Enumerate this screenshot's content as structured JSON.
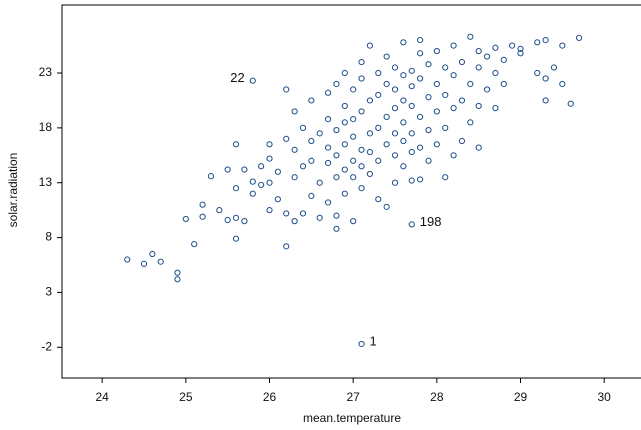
{
  "chart_data": {
    "type": "scatter",
    "x_label": "mean.temperature",
    "y_label": "solar.radiation",
    "xlim": [
      23.52,
      30.44
    ],
    "ylim": [
      -4.8,
      29.2
    ],
    "xticks": [
      24,
      25,
      26,
      27,
      28,
      29,
      30
    ],
    "yticks": [
      -2,
      3,
      8,
      13,
      18,
      23
    ],
    "color": "#1f4e8c",
    "x": [
      24.3,
      24.5,
      24.6,
      24.7,
      24.9,
      24.9,
      25.0,
      25.1,
      25.2,
      25.2,
      25.3,
      25.4,
      25.5,
      25.5,
      25.6,
      25.6,
      25.6,
      25.6,
      25.7,
      25.7,
      25.8,
      25.8,
      25.8,
      25.9,
      25.9,
      26.0,
      26.0,
      26.0,
      26.0,
      26.1,
      26.1,
      26.2,
      26.2,
      26.2,
      26.2,
      26.3,
      26.3,
      26.3,
      26.3,
      26.4,
      26.4,
      26.4,
      26.5,
      26.5,
      26.5,
      26.5,
      26.6,
      26.6,
      26.6,
      26.7,
      26.7,
      26.7,
      26.7,
      26.7,
      26.8,
      26.8,
      26.8,
      26.8,
      26.8,
      26.8,
      26.9,
      26.9,
      26.9,
      26.9,
      26.9,
      26.9,
      27.0,
      27.0,
      27.0,
      27.0,
      27.0,
      27.0,
      27.1,
      27.1,
      27.1,
      27.1,
      27.1,
      27.1,
      27.1,
      27.2,
      27.2,
      27.2,
      27.2,
      27.2,
      27.3,
      27.3,
      27.3,
      27.3,
      27.3,
      27.4,
      27.4,
      27.4,
      27.4,
      27.4,
      27.5,
      27.5,
      27.5,
      27.5,
      27.5,
      27.5,
      27.6,
      27.6,
      27.6,
      27.6,
      27.6,
      27.6,
      27.7,
      27.7,
      27.7,
      27.7,
      27.7,
      27.7,
      27.7,
      27.8,
      27.8,
      27.8,
      27.8,
      27.8,
      27.8,
      27.9,
      27.9,
      27.9,
      27.9,
      28.0,
      28.0,
      28.0,
      28.0,
      28.1,
      28.1,
      28.1,
      28.1,
      28.2,
      28.2,
      28.2,
      28.2,
      28.3,
      28.3,
      28.3,
      28.4,
      28.4,
      28.4,
      28.5,
      28.5,
      28.5,
      28.5,
      28.6,
      28.6,
      28.7,
      28.7,
      28.7,
      28.8,
      28.8,
      28.9,
      29.0,
      29.0,
      29.2,
      29.2,
      29.3,
      29.3,
      29.3,
      29.4,
      29.5,
      29.5,
      29.6,
      29.7
    ],
    "values": [
      6.0,
      5.6,
      6.5,
      5.8,
      4.8,
      4.2,
      9.7,
      7.4,
      9.9,
      11.0,
      13.6,
      10.5,
      9.6,
      14.2,
      7.9,
      9.8,
      16.5,
      12.5,
      9.5,
      14.2,
      13.1,
      22.3,
      12.0,
      14.5,
      12.8,
      10.5,
      13.0,
      16.5,
      15.2,
      11.5,
      14.0,
      7.2,
      10.2,
      17.0,
      21.5,
      9.5,
      13.5,
      16.0,
      19.5,
      10.2,
      14.5,
      18.0,
      11.8,
      15.0,
      20.5,
      16.8,
      13.0,
      17.5,
      9.8,
      11.2,
      14.8,
      16.2,
      18.8,
      21.2,
      10.0,
      13.5,
      15.5,
      17.8,
      22.0,
      8.8,
      12.0,
      14.2,
      16.5,
      18.5,
      20.0,
      23.0,
      9.5,
      13.5,
      15.0,
      17.2,
      18.8,
      21.5,
      -1.7,
      12.5,
      14.5,
      16.0,
      19.5,
      22.5,
      24.0,
      13.8,
      15.8,
      17.5,
      20.5,
      25.5,
      11.5,
      15.0,
      18.0,
      21.0,
      23.0,
      10.8,
      16.5,
      19.0,
      22.0,
      24.5,
      13.0,
      15.5,
      17.5,
      19.8,
      21.5,
      23.5,
      14.5,
      16.8,
      18.5,
      20.5,
      22.8,
      25.8,
      9.2,
      13.2,
      15.8,
      17.5,
      20.0,
      21.8,
      23.2,
      13.3,
      16.2,
      19.0,
      22.5,
      24.8,
      26.0,
      15.0,
      17.8,
      20.8,
      23.8,
      16.5,
      19.5,
      22.0,
      25.0,
      13.5,
      18.0,
      21.0,
      23.5,
      15.5,
      19.8,
      22.8,
      25.5,
      16.8,
      20.5,
      24.0,
      18.5,
      22.0,
      26.3,
      16.2,
      20.0,
      23.5,
      25.0,
      21.5,
      24.5,
      19.8,
      23.0,
      25.3,
      22.0,
      24.2,
      25.5,
      24.8,
      25.2,
      23.0,
      25.8,
      20.5,
      26.0,
      22.5,
      23.5,
      25.5,
      22.0,
      20.2,
      26.2
    ],
    "annotations": [
      {
        "text": "22",
        "x": 25.8,
        "y": 22.3
      },
      {
        "text": "198",
        "x": 27.7,
        "y": 9.2
      },
      {
        "text": "1",
        "x": 27.1,
        "y": -1.7
      }
    ]
  }
}
